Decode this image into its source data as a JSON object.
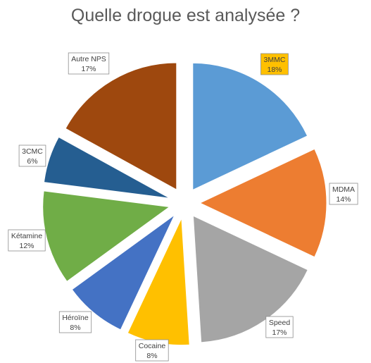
{
  "chart_data": {
    "type": "pie",
    "title": "Quelle drogue est analysée ?",
    "slices": [
      {
        "name": "3MMC",
        "value": 18,
        "label": "18%",
        "color": "#5B9BD5",
        "label_bg": "#FFC000"
      },
      {
        "name": "MDMA",
        "value": 14,
        "label": "14%",
        "color": "#ED7D31",
        "label_bg": "#FFFFFF"
      },
      {
        "name": "Speed",
        "value": 17,
        "label": "17%",
        "color": "#A5A5A5",
        "label_bg": "#FFFFFF"
      },
      {
        "name": "Cocaine",
        "value": 8,
        "label": "8%",
        "color": "#FFC000",
        "label_bg": "#FFFFFF"
      },
      {
        "name": "Héroïne",
        "value": 8,
        "label": "8%",
        "color": "#4472C4",
        "label_bg": "#FFFFFF"
      },
      {
        "name": "Kétamine",
        "value": 12,
        "label": "12%",
        "color": "#70AD47",
        "label_bg": "#FFFFFF"
      },
      {
        "name": "3CMC",
        "value": 6,
        "label": "6%",
        "color": "#255E91",
        "label_bg": "#FFFFFF"
      },
      {
        "name": "Autre NPS",
        "value": 17,
        "label": "17%",
        "color": "#9E480E",
        "label_bg": "#FFFFFF"
      }
    ],
    "legend": "none",
    "exploded": true
  }
}
